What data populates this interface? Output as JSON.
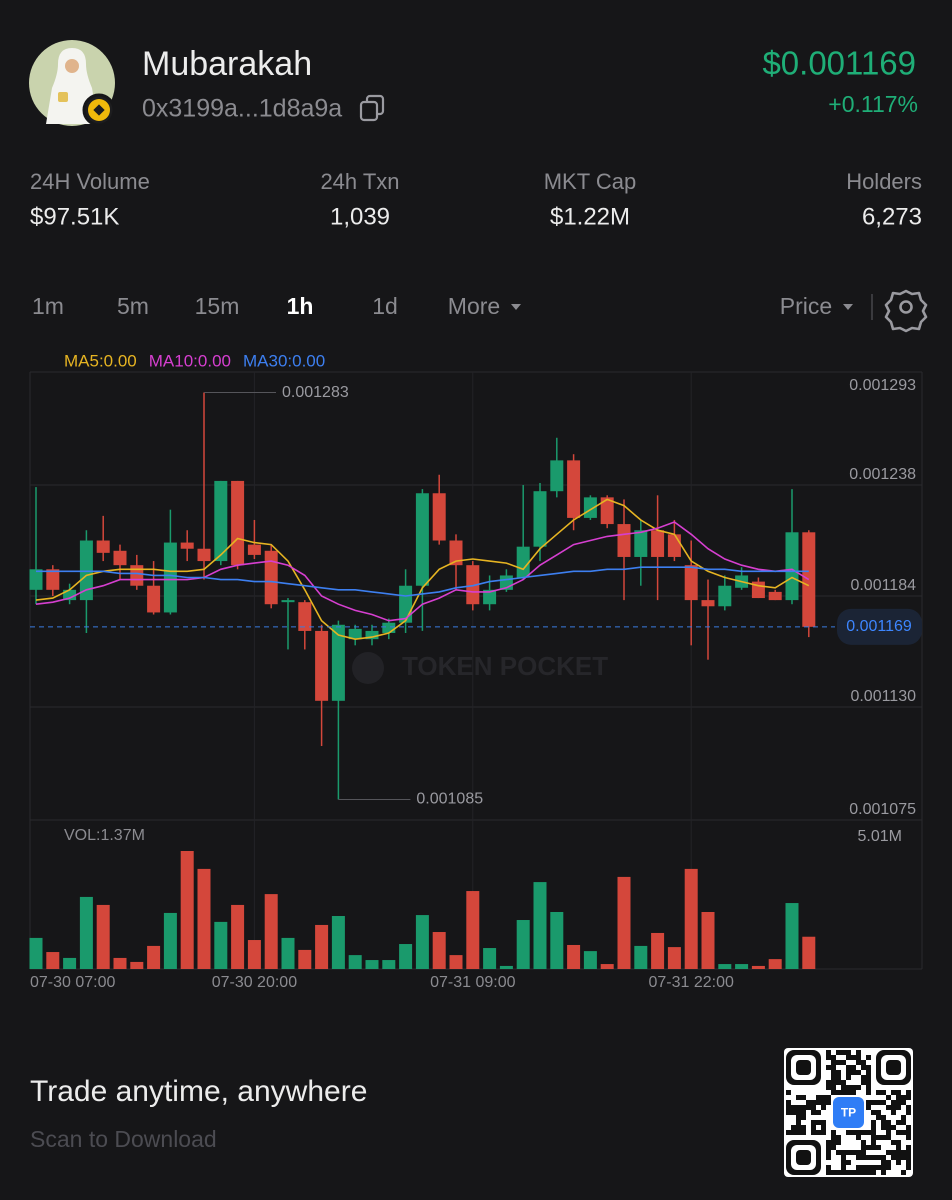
{
  "header": {
    "name": "Mubarakah",
    "address": "0x3199a...1d8a9a",
    "price": "$0.001169",
    "change": "+0.117%"
  },
  "stats": [
    {
      "label": "24H Volume",
      "value": "$97.51K"
    },
    {
      "label": "24h Txn",
      "value": "1,039"
    },
    {
      "label": "MKT Cap",
      "value": "$1.22M"
    },
    {
      "label": "Holders",
      "value": "6,273"
    }
  ],
  "tabs": [
    "1m",
    "5m",
    "15m",
    "1h",
    "1d",
    "More"
  ],
  "price_mode": "Price",
  "chart_data": {
    "type": "candlestick",
    "watermark": "TOKEN POCKET",
    "categories": [
      "07-30 07:00",
      null,
      null,
      null,
      null,
      null,
      null,
      null,
      null,
      null,
      null,
      null,
      null,
      "07-30 20:00",
      null,
      null,
      null,
      null,
      null,
      null,
      null,
      null,
      null,
      null,
      null,
      null,
      "07-31 09:00",
      null,
      null,
      null,
      null,
      null,
      null,
      null,
      null,
      null,
      null,
      null,
      null,
      "07-31 22:00",
      null,
      null,
      null,
      null,
      null,
      null,
      null
    ],
    "open": [
      0.001187,
      0.001197,
      0.001182,
      0.001182,
      0.001211,
      0.001206,
      0.001199,
      0.001189,
      0.001176,
      0.00121,
      0.001207,
      0.001201,
      0.00124,
      0.001209,
      0.001206,
      0.001181,
      0.001181,
      0.001167,
      0.001133,
      0.001163,
      0.001163,
      0.001166,
      0.001171,
      0.001189,
      0.001234,
      0.001211,
      0.001199,
      0.00118,
      0.001187,
      0.001193,
      0.001208,
      0.001235,
      0.00125,
      0.001222,
      0.001232,
      0.001219,
      0.001203,
      0.001216,
      0.001214,
      0.001199,
      0.001182,
      0.001179,
      0.001188,
      0.001191,
      0.001186,
      0.001182,
      0.001215
    ],
    "high": [
      0.001237,
      0.001199,
      0.00119,
      0.001216,
      0.001223,
      0.001209,
      0.001204,
      0.001201,
      0.001226,
      0.001216,
      0.001283,
      0.00124,
      0.00124,
      0.001221,
      0.001209,
      0.001183,
      0.001182,
      0.00117,
      0.001172,
      0.00117,
      0.00117,
      0.001173,
      0.001197,
      0.001236,
      0.001243,
      0.001214,
      0.001201,
      0.001194,
      0.001197,
      0.001238,
      0.001239,
      0.001261,
      0.001253,
      0.001233,
      0.001233,
      0.001231,
      0.001221,
      0.001233,
      0.001221,
      0.001211,
      0.001192,
      0.001194,
      0.001198,
      0.001193,
      0.001187,
      0.001236,
      0.001216
    ],
    "low": [
      0.00118,
      0.001184,
      0.00118,
      0.001166,
      0.001201,
      0.001192,
      0.001187,
      0.001175,
      0.001175,
      0.001201,
      0.001192,
      0.001199,
      0.001197,
      0.001202,
      0.001178,
      0.001158,
      0.001158,
      0.001111,
      0.001085,
      0.00116,
      0.00116,
      0.001163,
      0.001166,
      0.001167,
      0.001209,
      0.001187,
      0.001177,
      0.001177,
      0.001186,
      0.001192,
      0.001201,
      0.001232,
      0.001216,
      0.001221,
      0.001217,
      0.001182,
      0.001189,
      0.001182,
      0.001201,
      0.00116,
      0.001153,
      0.001177,
      0.001187,
      0.001183,
      0.001182,
      0.00118,
      0.001164
    ],
    "close": [
      0.001197,
      0.001187,
      0.001187,
      0.001211,
      0.001205,
      0.001199,
      0.001189,
      0.001176,
      0.00121,
      0.001207,
      0.001201,
      0.00124,
      0.001199,
      0.001204,
      0.00118,
      0.001182,
      0.001167,
      0.001133,
      0.00117,
      0.001168,
      0.001167,
      0.001171,
      0.001189,
      0.001234,
      0.001211,
      0.001199,
      0.00118,
      0.001187,
      0.001194,
      0.001208,
      0.001235,
      0.00125,
      0.001222,
      0.001232,
      0.001219,
      0.001203,
      0.001216,
      0.001203,
      0.001203,
      0.001182,
      0.001179,
      0.001189,
      0.001194,
      0.001183,
      0.001182,
      0.001215,
      0.001169
    ],
    "up_color": "#1a9a6c",
    "down_color": "#d4473b",
    "series": [
      {
        "name": "MA5:0.00",
        "color": "#e6b422",
        "values": [
          0.001182,
          0.001183,
          0.001187,
          0.001194,
          0.001196,
          0.001197,
          0.001197,
          0.001197,
          0.001196,
          0.001196,
          0.001197,
          0.001204,
          0.001212,
          0.00121,
          0.001209,
          0.001201,
          0.001187,
          0.001172,
          0.001165,
          0.001163,
          0.001164,
          0.001166,
          0.001172,
          0.001188,
          0.001197,
          0.001201,
          0.001202,
          0.001201,
          0.0012,
          0.001197,
          0.001207,
          0.001214,
          0.001221,
          0.001226,
          0.001231,
          0.001228,
          0.001221,
          0.001216,
          0.001214,
          0.001201,
          0.001196,
          0.001193,
          0.001191,
          0.001189,
          0.001188,
          0.001193,
          0.001189
        ]
      },
      {
        "name": "MA10:0.00",
        "color": "#d63fd0",
        "values": [
          0.00118,
          0.001181,
          0.001183,
          0.001187,
          0.001189,
          0.001192,
          0.001192,
          0.001192,
          0.001192,
          0.001192,
          0.001193,
          0.001197,
          0.001199,
          0.0012,
          0.001201,
          0.001199,
          0.001194,
          0.001184,
          0.00118,
          0.001177,
          0.001175,
          0.001172,
          0.001173,
          0.00118,
          0.001183,
          0.001187,
          0.001186,
          0.001186,
          0.001188,
          0.001192,
          0.001199,
          0.001204,
          0.001209,
          0.001211,
          0.001213,
          0.001214,
          0.001215,
          0.001217,
          0.00122,
          0.001214,
          0.001207,
          0.001202,
          0.001199,
          0.001197,
          0.001196,
          0.001197,
          0.001192
        ]
      },
      {
        "name": "MA30:0.00",
        "color": "#3d7ff0",
        "values": [
          0.001196,
          0.001196,
          0.001196,
          0.001196,
          0.001196,
          0.001195,
          0.001195,
          0.001194,
          0.001194,
          0.001193,
          0.001193,
          0.001192,
          0.001192,
          0.001191,
          0.001191,
          0.00119,
          0.001189,
          0.001188,
          0.001187,
          0.001187,
          0.001186,
          0.001185,
          0.001184,
          0.001185,
          0.001186,
          0.001188,
          0.001189,
          0.001191,
          0.001192,
          0.001193,
          0.001194,
          0.001195,
          0.001196,
          0.001196,
          0.001197,
          0.001197,
          0.001198,
          0.001198,
          0.001198,
          0.001198,
          0.001197,
          0.001197,
          0.001196,
          0.001196,
          0.001196,
          0.001196,
          0.001196
        ]
      }
    ],
    "ylim": [
      0.001075,
      0.001293
    ],
    "yticks": [
      0.001293,
      0.001238,
      0.001184,
      {
        "value": 0.00113,
        "label": "0.001130"
      },
      0.001075
    ],
    "volume": {
      "label": "VOL:1.37M",
      "values": [
        1320000,
        720000,
        470000,
        3060000,
        2720000,
        470000,
        300000,
        980000,
        2380000,
        5010000,
        4250000,
        2000000,
        2720000,
        1230000,
        3180000,
        1320000,
        810000,
        1870000,
        2250000,
        590000,
        380000,
        380000,
        1060000,
        2290000,
        1570000,
        590000,
        3310000,
        890000,
        130000,
        2080000,
        3690000,
        2420000,
        1020000,
        760000,
        210000,
        3910000,
        980000,
        1530000,
        930000,
        4250000,
        2420000,
        210000,
        210000,
        130000,
        420000,
        2800000,
        1370000
      ],
      "ylim": [
        0,
        5010000
      ],
      "yticks": [
        {
          "value": 5010000,
          "label": "5.01M"
        }
      ]
    }
  },
  "footer": {
    "slogan": "Trade anytime, anywhere",
    "cta": "Scan to Download",
    "qr_badge": "TP"
  }
}
